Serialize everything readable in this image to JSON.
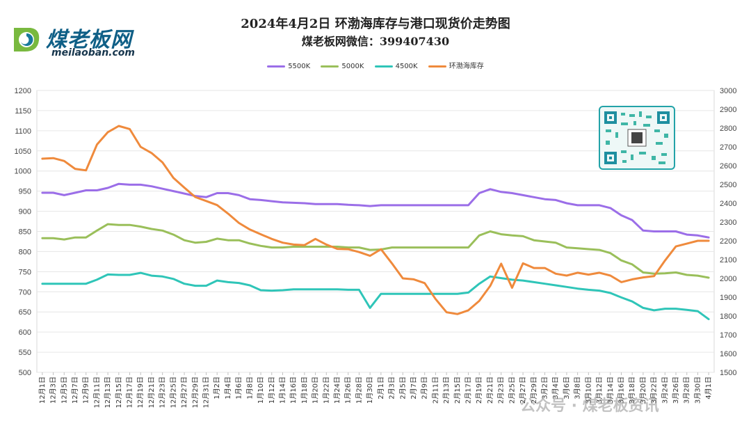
{
  "logo": {
    "name_cn": "煤老板网",
    "domain": "meilaoban.com"
  },
  "watermark": "公众号 · 煤老板资讯",
  "chart_data": {
    "type": "line",
    "title": "2024年4月2日 环渤海库存与港口现货价走势图",
    "subtitle": "煤老板网微信：399407430",
    "x": [
      "12月1日",
      "12月3日",
      "12月5日",
      "12月7日",
      "12月9日",
      "12月11日",
      "12月13日",
      "12月15日",
      "12月17日",
      "12月19日",
      "12月21日",
      "12月23日",
      "12月25日",
      "12月27日",
      "12月29日",
      "12月31日",
      "1月2日",
      "1月4日",
      "1月6日",
      "1月8日",
      "1月10日",
      "1月12日",
      "1月14日",
      "1月16日",
      "1月18日",
      "1月20日",
      "1月22日",
      "1月24日",
      "1月26日",
      "1月28日",
      "1月30日",
      "2月1日",
      "2月3日",
      "2月5日",
      "2月7日",
      "2月9日",
      "2月11日",
      "2月13日",
      "2月15日",
      "2月17日",
      "2月19日",
      "2月21日",
      "2月23日",
      "2月25日",
      "2月27日",
      "2月29日",
      "3月2日",
      "3月4日",
      "3月6日",
      "3月8日",
      "3月10日",
      "3月12日",
      "3月14日",
      "3月16日",
      "3月18日",
      "3月20日",
      "3月22日",
      "3月24日",
      "3月26日",
      "3月28日",
      "3月30日",
      "4月1日"
    ],
    "left_axis": {
      "min": 500,
      "max": 1200,
      "step": 50
    },
    "right_axis": {
      "min": 1500,
      "max": 3000,
      "step": 100
    },
    "series": [
      {
        "name": "5500K",
        "axis": "left",
        "color": "#9b6ee8",
        "values": [
          946,
          946,
          940,
          946,
          952,
          952,
          958,
          968,
          966,
          966,
          962,
          956,
          950,
          944,
          938,
          935,
          945,
          945,
          940,
          930,
          928,
          925,
          922,
          921,
          920,
          918,
          918,
          918,
          916,
          915,
          913,
          915,
          915,
          915,
          915,
          915,
          915,
          915,
          915,
          915,
          945,
          955,
          948,
          945,
          940,
          935,
          930,
          928,
          920,
          915,
          915,
          915,
          908,
          890,
          878,
          852,
          850,
          850,
          850,
          842,
          840,
          835
        ]
      },
      {
        "name": "5000K",
        "axis": "left",
        "color": "#9abf5a",
        "values": [
          833,
          833,
          830,
          835,
          835,
          852,
          868,
          866,
          866,
          862,
          856,
          852,
          842,
          828,
          822,
          824,
          832,
          828,
          828,
          820,
          814,
          810,
          810,
          812,
          812,
          812,
          812,
          812,
          810,
          810,
          804,
          805,
          810,
          810,
          810,
          810,
          810,
          810,
          810,
          810,
          840,
          850,
          843,
          840,
          838,
          828,
          825,
          822,
          810,
          808,
          806,
          804,
          796,
          778,
          768,
          748,
          745,
          746,
          748,
          742,
          740,
          735
        ]
      },
      {
        "name": "4500K",
        "axis": "left",
        "color": "#2fc5b8",
        "values": [
          720,
          720,
          720,
          720,
          720,
          730,
          743,
          742,
          742,
          747,
          740,
          738,
          732,
          720,
          715,
          715,
          728,
          724,
          722,
          716,
          704,
          703,
          704,
          706,
          706,
          706,
          706,
          706,
          705,
          705,
          660,
          695,
          695,
          695,
          695,
          695,
          695,
          695,
          695,
          698,
          720,
          738,
          734,
          730,
          728,
          724,
          720,
          716,
          712,
          708,
          705,
          703,
          697,
          686,
          676,
          660,
          654,
          658,
          658,
          655,
          652,
          632
        ]
      },
      {
        "name": "环渤海库存",
        "axis": "right",
        "color": "#ef8a3c",
        "values": [
          2637,
          2640,
          2625,
          2583,
          2575,
          2712,
          2778,
          2811,
          2795,
          2700,
          2667,
          2617,
          2535,
          2483,
          2433,
          2412,
          2390,
          2345,
          2295,
          2260,
          2235,
          2210,
          2190,
          2180,
          2177,
          2210,
          2180,
          2157,
          2155,
          2140,
          2120,
          2155,
          2080,
          2000,
          1995,
          1975,
          1890,
          1820,
          1810,
          1830,
          1880,
          1960,
          2078,
          1950,
          2080,
          2055,
          2055,
          2025,
          2015,
          2030,
          2020,
          2030,
          2015,
          1980,
          1995,
          2005,
          2012,
          2095,
          2170,
          2185,
          2200,
          2200
        ]
      }
    ],
    "grid": true,
    "legend": "top"
  }
}
